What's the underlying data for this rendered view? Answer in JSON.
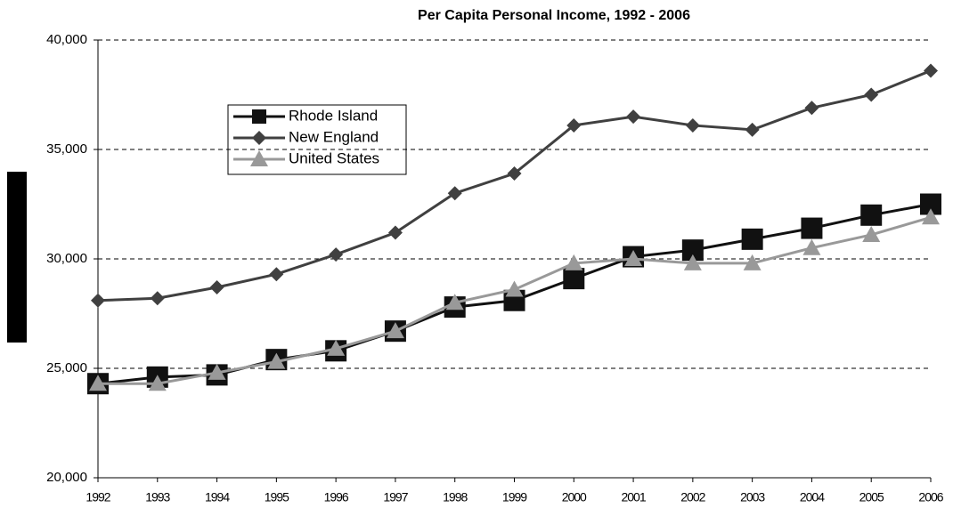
{
  "chart_data": {
    "type": "line",
    "title": "Per Capita Personal Income, 1992 - 2006",
    "categories": [
      "1992",
      "1993",
      "1994",
      "1995",
      "1996",
      "1997",
      "1998",
      "1999",
      "2000",
      "2001",
      "2002",
      "2003",
      "2004",
      "2005",
      "2006"
    ],
    "series": [
      {
        "name": "Rhode Island",
        "color": "#111111",
        "marker": "square",
        "values": [
          24300,
          24600,
          24700,
          25400,
          25800,
          26700,
          27800,
          28100,
          29100,
          30100,
          30400,
          30900,
          31400,
          32000,
          32500
        ]
      },
      {
        "name": "New England",
        "color": "#404040",
        "marker": "diamond",
        "values": [
          28100,
          28200,
          28700,
          29300,
          30200,
          31200,
          33000,
          33900,
          36100,
          36500,
          36100,
          35900,
          36900,
          37500,
          38600
        ]
      },
      {
        "name": "United States",
        "color": "#999999",
        "marker": "triangle",
        "values": [
          24300,
          24300,
          24800,
          25300,
          25900,
          26700,
          28000,
          28600,
          29800,
          30000,
          29800,
          29800,
          30500,
          31100,
          31900
        ]
      }
    ],
    "ylim": [
      20000,
      40000
    ],
    "yticks": [
      {
        "value": 20000,
        "label": "20,000"
      },
      {
        "value": 25000,
        "label": "25,000"
      },
      {
        "value": 30000,
        "label": "30,000"
      },
      {
        "value": 35000,
        "label": "35,000"
      },
      {
        "value": 40000,
        "label": "40,000"
      }
    ],
    "grid": true
  }
}
